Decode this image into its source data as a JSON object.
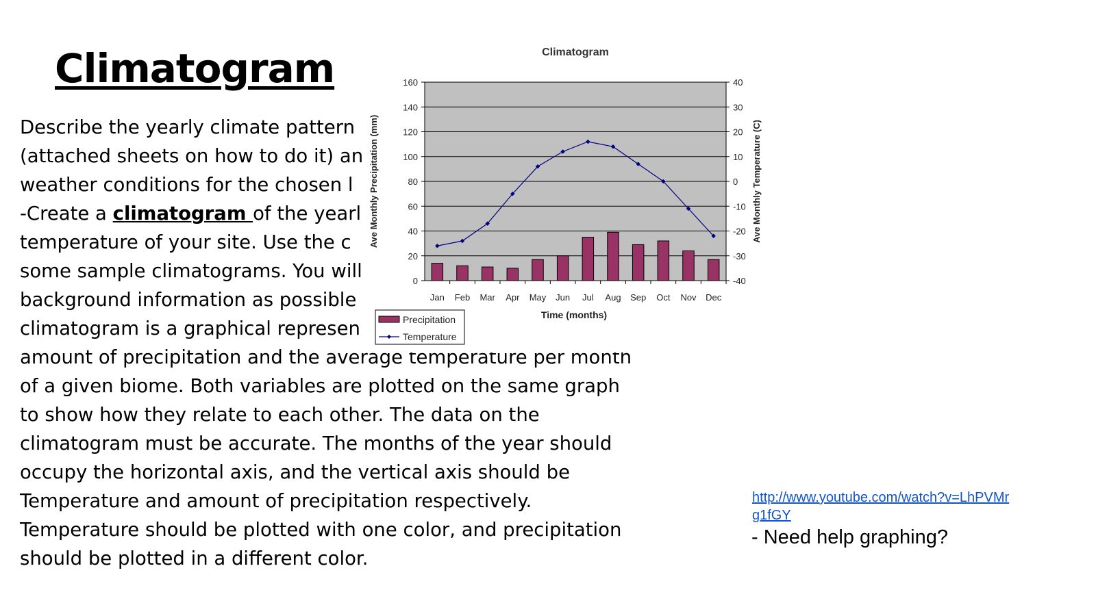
{
  "slide": {
    "title": "Climatogram",
    "body_lines": [
      "Describe the yearly climate pattern",
      "(attached sheets on how to do it) an",
      "weather conditions for the chosen l",
      "of the yearl",
      "temperature of your site. Use the c",
      "some sample climatograms. You will",
      "background information as possible",
      "climatogram is a graphical represen",
      "amount of precipitation and the average temperature per month",
      "of a given biome. Both variables are plotted on the same graph",
      "to show how they relate to each other. The data on the",
      "climatogram must be accurate. The months of the year should",
      "occupy the horizontal axis, and the vertical axis should be",
      "Temperature and amount of precipitation respectively.",
      "Temperature should be plotted with one color, and precipitation",
      "should be plotted in a different color."
    ],
    "create_prefix": "-Create a ",
    "create_keyword": "climatogram ",
    "link_text": "http://www.youtube.com/watch?v=LhPVMrg1fGY",
    "help_text": "- Need help graphing?"
  },
  "chart_data": {
    "type": "bar",
    "title": "Climatogram",
    "xlabel": "Time (months)",
    "ylabel": "Ave Monthly Precipitation (mm)",
    "y2label": "Ave Monthly Temperature (C)",
    "categories": [
      "Jan",
      "Feb",
      "Mar",
      "Apr",
      "May",
      "Jun",
      "Jul",
      "Aug",
      "Sep",
      "Oct",
      "Nov",
      "Dec"
    ],
    "ylim": [
      0,
      160
    ],
    "y_ticks": [
      0,
      20,
      40,
      60,
      80,
      100,
      120,
      140,
      160
    ],
    "y2lim": [
      -40,
      40
    ],
    "y2_ticks": [
      -40,
      -30,
      -20,
      -10,
      0,
      10,
      20,
      30,
      40
    ],
    "grid": true,
    "legend_position": "bottom-left",
    "series": [
      {
        "name": "Precipitation",
        "kind": "bar",
        "axis": "left",
        "color": "#993366",
        "values": [
          14,
          12,
          11,
          10,
          17,
          20,
          35,
          39,
          29,
          32,
          24,
          17
        ]
      },
      {
        "name": "Temperature",
        "kind": "line",
        "axis": "right",
        "color": "#000080",
        "values": [
          -26,
          -24,
          -17,
          -5,
          6,
          12,
          16,
          14,
          7,
          0,
          -11,
          -22
        ]
      }
    ],
    "colors": {
      "plot_bg": "#c0c0c0",
      "grid": "#000000"
    }
  }
}
